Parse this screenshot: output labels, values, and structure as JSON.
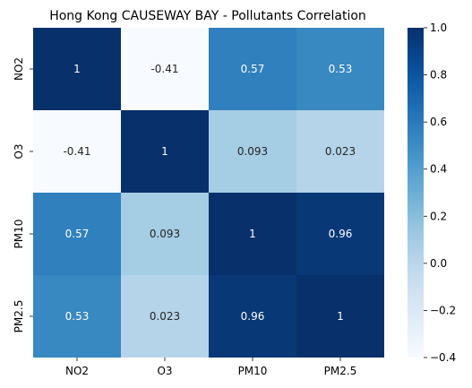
{
  "chart_data": {
    "type": "heatmap",
    "title": "Hong Kong CAUSEWAY BAY - Pollutants Correlation",
    "xlabel": "",
    "ylabel": "",
    "rows": [
      "NO2",
      "O3",
      "PM10",
      "PM2.5"
    ],
    "columns": [
      "NO2",
      "O3",
      "PM10",
      "PM2.5"
    ],
    "values": [
      [
        1,
        -0.41,
        0.57,
        0.53
      ],
      [
        -0.41,
        1,
        0.093,
        0.023
      ],
      [
        0.57,
        0.093,
        1,
        0.96
      ],
      [
        0.53,
        0.023,
        0.96,
        1
      ]
    ],
    "annotations": [
      [
        "1",
        "-0.41",
        "0.57",
        "0.53"
      ],
      [
        "-0.41",
        "1",
        "0.093",
        "0.023"
      ],
      [
        "0.57",
        "0.093",
        "1",
        "0.96"
      ],
      [
        "0.53",
        "0.023",
        "0.96",
        "1"
      ]
    ],
    "colormap": "Blues",
    "color_range": [
      -0.4,
      1.0
    ],
    "colorbar_ticks": [
      "1.0",
      "0.8",
      "0.6",
      "0.4",
      "0.2",
      "0.0",
      "−0.2",
      "−0.4"
    ],
    "colorbar_tick_values": [
      1.0,
      0.8,
      0.6,
      0.4,
      0.2,
      0.0,
      -0.2,
      -0.4
    ],
    "grid": false,
    "legend": "colorbar-right"
  }
}
